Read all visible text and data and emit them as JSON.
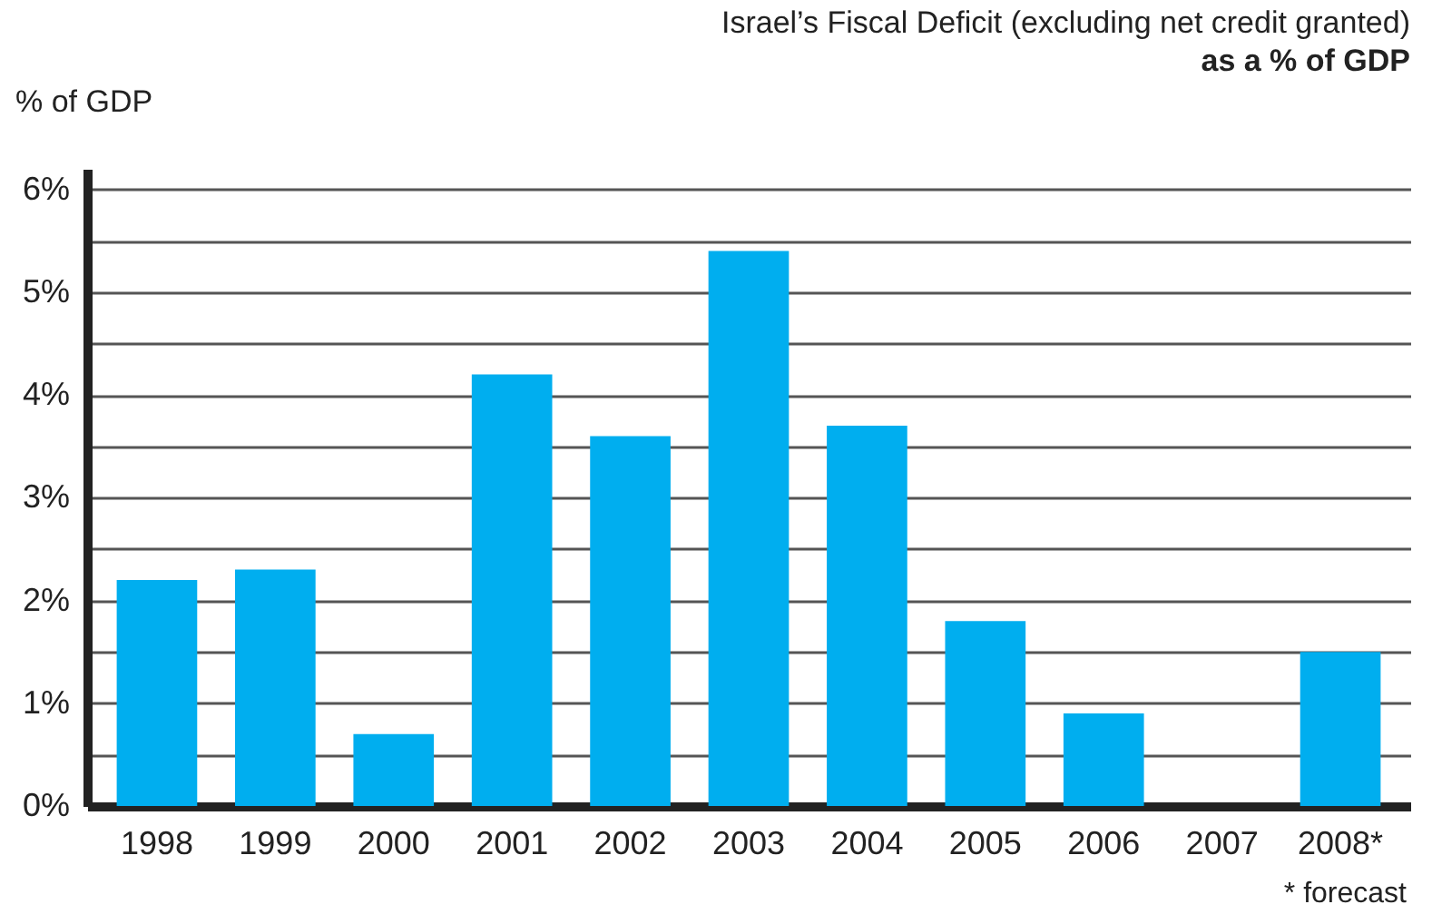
{
  "chart_data": {
    "type": "bar",
    "title": "Israel’s Fiscal Deficit (excluding net credit granted)",
    "subtitle": "as a % of GDP",
    "ylabel": "% of GDP",
    "categories": [
      "1998",
      "1999",
      "2000",
      "2001",
      "2002",
      "2003",
      "2004",
      "2005",
      "2006",
      "2007",
      "2008*"
    ],
    "values": [
      2.2,
      2.3,
      0.7,
      4.2,
      3.6,
      5.4,
      3.7,
      1.8,
      0.9,
      null,
      1.5
    ],
    "color": "#00aeef",
    "ylim": [
      0,
      6.2
    ],
    "yticks": [
      {
        "value": 0,
        "label": "0%"
      },
      {
        "value": 0.5,
        "label": null
      },
      {
        "value": 1,
        "label": "1%"
      },
      {
        "value": 1.5,
        "label": null
      },
      {
        "value": 2,
        "label": "2%"
      },
      {
        "value": 2.5,
        "label": null
      },
      {
        "value": 3,
        "label": "3%"
      },
      {
        "value": 3.5,
        "label": null
      },
      {
        "value": 4,
        "label": "4%"
      },
      {
        "value": 4.5,
        "label": null
      },
      {
        "value": 5,
        "label": "5%"
      },
      {
        "value": 5.5,
        "label": null
      },
      {
        "value": 6,
        "label": "6%"
      }
    ],
    "grid": true,
    "annotations": [
      "* forecast"
    ]
  }
}
